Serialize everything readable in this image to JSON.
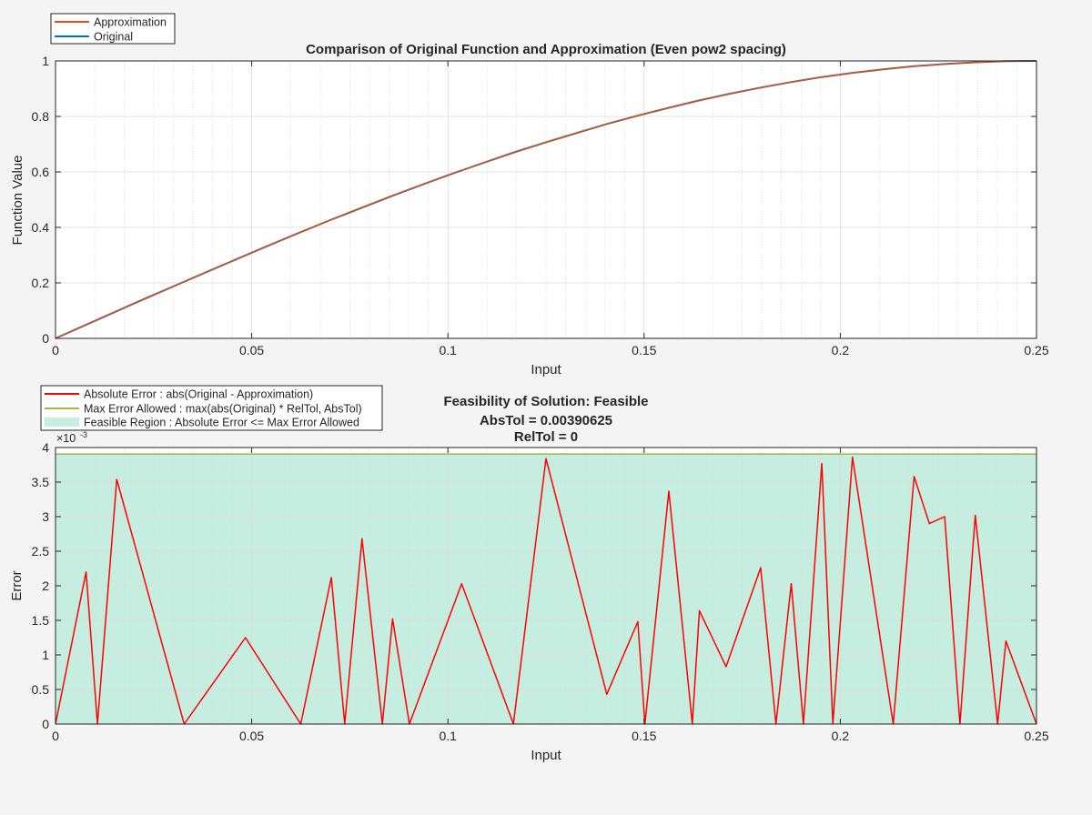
{
  "chart_data": [
    {
      "type": "line",
      "title": "Comparison of Original Function and Approximation (Even pow2 spacing)",
      "xlabel": "Input",
      "ylabel": "Function Value",
      "xlim": [
        0,
        0.25
      ],
      "ylim": [
        0,
        1
      ],
      "xticks": [
        "0",
        "0.05",
        "0.1",
        "0.15",
        "0.2",
        "0.25"
      ],
      "yticks": [
        "0",
        "0.2",
        "0.4",
        "0.6",
        "0.8",
        "1"
      ],
      "grid": true,
      "minor_grid_x": true,
      "legend_position": "top-left outside",
      "series": [
        {
          "name": "Approximation",
          "color": "#d95319",
          "x": [
            0,
            0.0078,
            0.0156,
            0.0234,
            0.0313,
            0.0391,
            0.0469,
            0.0547,
            0.0625,
            0.0703,
            0.0781,
            0.0859,
            0.0938,
            0.1016,
            0.1094,
            0.1172,
            0.125,
            0.1328,
            0.1406,
            0.1484,
            0.1563,
            0.1641,
            0.1719,
            0.1797,
            0.1875,
            0.1953,
            0.2031,
            0.2109,
            0.2188,
            0.2266,
            0.2344,
            0.2422,
            0.25
          ],
          "y": [
            0,
            0.049,
            0.098,
            0.146,
            0.195,
            0.243,
            0.29,
            0.337,
            0.383,
            0.428,
            0.472,
            0.515,
            0.556,
            0.596,
            0.634,
            0.671,
            0.707,
            0.741,
            0.773,
            0.803,
            0.831,
            0.857,
            0.882,
            0.904,
            0.924,
            0.942,
            0.957,
            0.97,
            0.981,
            0.989,
            0.995,
            0.999,
            1
          ]
        },
        {
          "name": "Original",
          "color": "#0072bd",
          "x": [
            0,
            0.0078,
            0.0156,
            0.0234,
            0.0313,
            0.0391,
            0.0469,
            0.0547,
            0.0625,
            0.0703,
            0.0781,
            0.0859,
            0.0938,
            0.1016,
            0.1094,
            0.1172,
            0.125,
            0.1328,
            0.1406,
            0.1484,
            0.1563,
            0.1641,
            0.1719,
            0.1797,
            0.1875,
            0.1953,
            0.2031,
            0.2109,
            0.2188,
            0.2266,
            0.2344,
            0.2422,
            0.25
          ],
          "y": [
            0,
            0.049,
            0.098,
            0.147,
            0.195,
            0.243,
            0.29,
            0.337,
            0.383,
            0.428,
            0.471,
            0.514,
            0.556,
            0.596,
            0.634,
            0.672,
            0.707,
            0.74,
            0.773,
            0.803,
            0.831,
            0.858,
            0.882,
            0.904,
            0.924,
            0.942,
            0.957,
            0.97,
            0.981,
            0.989,
            0.995,
            0.999,
            1
          ]
        }
      ]
    },
    {
      "type": "line",
      "title": "Feasibility of Solution: Feasible",
      "subtitle_lines": [
        "AbsTol = 0.00390625",
        "RelTol = 0"
      ],
      "xlabel": "Input",
      "ylabel": "Error",
      "exponent_label": "×10",
      "exponent_power": "-3",
      "xlim": [
        0,
        0.25
      ],
      "ylim": [
        0,
        0.004
      ],
      "xticks": [
        "0",
        "0.05",
        "0.1",
        "0.15",
        "0.2",
        "0.25"
      ],
      "yticks": [
        "0",
        "0.5",
        "1",
        "1.5",
        "2",
        "2.5",
        "3",
        "3.5",
        "4"
      ],
      "grid": true,
      "minor_grid_x": true,
      "legend_position": "top-left outside",
      "legend": [
        "Absolute Error : abs(Original - Approximation)",
        "Max Error Allowed : max(abs(Original) * RelTol, AbsTol)",
        "Feasible Region : Absolute Error <= Max Error Allowed"
      ],
      "series": [
        {
          "name": "Absolute Error : abs(Original - Approximation)",
          "color": "#ff0000",
          "x": [
            0,
            0.0078,
            0.0107,
            0.0156,
            0.0328,
            0.0484,
            0.0625,
            0.0703,
            0.0737,
            0.0781,
            0.0833,
            0.0859,
            0.0902,
            0.1035,
            0.1167,
            0.125,
            0.1405,
            0.1484,
            0.1502,
            0.1563,
            0.1623,
            0.1641,
            0.1709,
            0.1797,
            0.1836,
            0.1875,
            0.1906,
            0.1953,
            0.1981,
            0.2031,
            0.2135,
            0.2188,
            0.2227,
            0.2266,
            0.2305,
            0.2344,
            0.2401,
            0.2422,
            0.25
          ],
          "y": [
            0,
            0.0022,
            0,
            0.00354,
            0,
            0.00125,
            0,
            0.00212,
            0,
            0.00268,
            0,
            0.00152,
            0,
            0.00203,
            0,
            0.00384,
            0.00043,
            0.00148,
            0,
            0.00337,
            0,
            0.00164,
            0.00083,
            0.00226,
            0,
            0.00203,
            0,
            0.00377,
            0,
            0.00386,
            0,
            0.00358,
            0.0029,
            0.003,
            0,
            0.00302,
            0,
            0.0012,
            0
          ]
        },
        {
          "name": "Max Error Allowed : max(abs(Original) * RelTol, AbsTol)",
          "color": "#a2b73c",
          "x": [
            0,
            0.25
          ],
          "y": [
            0.00390625,
            0.00390625
          ]
        }
      ],
      "feasible_region": {
        "name": "Feasible Region : Absolute Error <= Max Error Allowed",
        "color": "#c6eee0",
        "y_max": 0.00390625
      }
    }
  ]
}
